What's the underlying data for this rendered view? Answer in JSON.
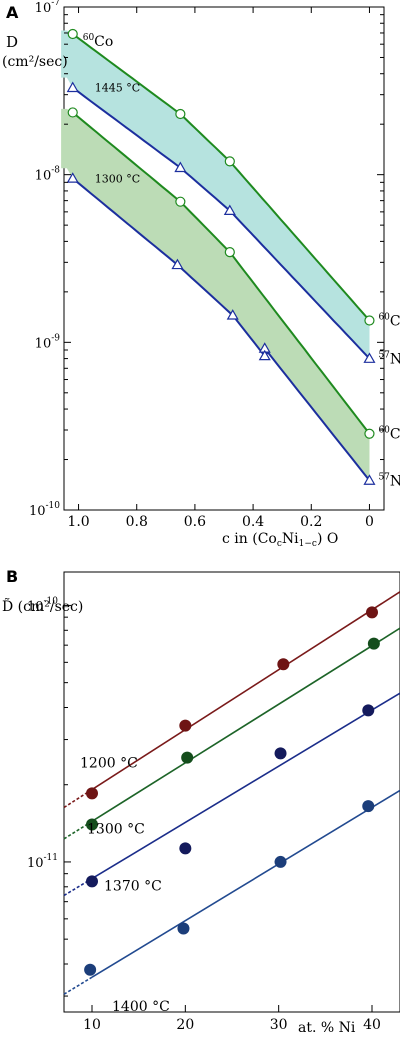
{
  "chart_data": [
    {
      "panel": "A",
      "type": "line",
      "scale_y": "log",
      "x_reversed": true,
      "ylabel_line1": "D",
      "ylabel_line2": "(cm²/sec)",
      "xlabel": "c in (CoₓNi₁₋ₓ) O",
      "xlabel_parts": [
        "c in (Co",
        "c",
        "Ni",
        "1−c",
        ") O"
      ],
      "xlim": [
        1.05,
        -0.05
      ],
      "ylim": [
        1e-10,
        1e-07
      ],
      "x_ticks": [
        1.0,
        0.8,
        0.6,
        0.4,
        0.2,
        0
      ],
      "x_tick_labels": [
        "1.0",
        "0.8",
        "0.6",
        "0.4",
        "0.2",
        "0"
      ],
      "y_ticks": [
        {
          "value": 1e-07,
          "base": "10",
          "exp": "-7"
        },
        {
          "value": 1e-08,
          "base": "10",
          "exp": "-8"
        },
        {
          "value": 1e-09,
          "base": "10",
          "exp": "-9"
        },
        {
          "value": 1e-10,
          "base": "10",
          "exp": "-10"
        }
      ],
      "bands": [
        {
          "color": "#b6e3df",
          "between": [
            "Co 1445",
            "Ni 1445"
          ]
        },
        {
          "color": "#bcdcb6",
          "between": [
            "Co 1300",
            "Ni 1300"
          ]
        }
      ],
      "series": [
        {
          "id": "Co 1445",
          "temperature": "1445 °C",
          "isotope_mass": "60",
          "isotope": "Co",
          "marker": "circle",
          "color": "#1f8a1f",
          "x": [
            1.02,
            0.65,
            0.48,
            0.0
          ],
          "y": [
            6.9e-08,
            2.3e-08,
            1.2e-08,
            1.35e-09
          ]
        },
        {
          "id": "Ni 1445",
          "temperature": "1445 °C",
          "isotope_mass": "57",
          "isotope": "Ni",
          "marker": "triangle",
          "color": "#1c2f9e",
          "x": [
            1.02,
            0.65,
            0.48,
            0.0
          ],
          "y": [
            3.3e-08,
            1.1e-08,
            6.1e-09,
            8e-10
          ]
        },
        {
          "id": "Co 1300",
          "temperature": "1300 °C",
          "isotope_mass": "60",
          "isotope": "Co",
          "marker": "circle",
          "color": "#1f8a1f",
          "x": [
            1.02,
            0.65,
            0.48,
            0.0
          ],
          "y": [
            2.35e-08,
            6.9e-09,
            3.45e-09,
            2.85e-10
          ]
        },
        {
          "id": "Ni 1300",
          "temperature": "1300 °C",
          "isotope_mass": "57",
          "isotope": "Ni",
          "marker": "triangle",
          "color": "#1c2f9e",
          "x": [
            1.02,
            0.66,
            0.47,
            0.36,
            0.36,
            0.0
          ],
          "y": [
            9.5e-09,
            2.9e-09,
            1.45e-09,
            9.2e-10,
            8.3e-10,
            1.5e-10
          ]
        }
      ],
      "annotations": [
        {
          "text": "1445 °C"
        },
        {
          "text": "1300 °C"
        }
      ]
    },
    {
      "panel": "B",
      "type": "scatter",
      "scale_y": "log",
      "ylabel": "D̃ (cm²/sec)",
      "xlabel": "at. % Ni",
      "xlim": [
        7,
        43
      ],
      "ylim": [
        2.6e-12,
        1.35e-10
      ],
      "x_ticks": [
        10,
        20,
        30,
        40
      ],
      "x_tick_labels": [
        "10",
        "20",
        "30",
        "40"
      ],
      "y_ticks": [
        {
          "value": 1e-10,
          "base": "10",
          "exp": "-10"
        },
        {
          "value": 1e-11,
          "base": "10",
          "exp": "-11"
        }
      ],
      "series": [
        {
          "label": "1200 °C",
          "color": "#6e1414",
          "fit_color": "#7a1a1a",
          "x": [
            10,
            20,
            30.5,
            40
          ],
          "y": [
            1.85e-11,
            3.4e-11,
            5.9e-11,
            9.4e-11
          ],
          "fit": {
            "x": [
              7,
              43
            ],
            "y": [
              1.63e-11,
              1.13e-10
            ]
          }
        },
        {
          "label": "1300 °C",
          "color": "#144d1c",
          "fit_color": "#1d6428",
          "x": [
            10,
            20.2,
            40.2
          ],
          "y": [
            1.4e-11,
            2.55e-11,
            7.1e-11
          ],
          "fit": {
            "x": [
              7,
              43
            ],
            "y": [
              1.23e-11,
              8.15e-11
            ]
          }
        },
        {
          "label": "1370 °C",
          "color": "#141a5c",
          "fit_color": "#1b2d8a",
          "x": [
            10,
            20,
            30.2,
            39.6
          ],
          "y": [
            8.4e-12,
            1.13e-11,
            2.65e-11,
            3.9e-11
          ],
          "fit": {
            "x": [
              7,
              43
            ],
            "y": [
              7.4e-12,
              4.55e-11
            ]
          }
        },
        {
          "label": "1400 °C",
          "color": "#1c3e7a",
          "fit_color": "#224a90",
          "x": [
            9.8,
            19.8,
            30.2,
            39.6
          ],
          "y": [
            3.8e-12,
            5.5e-12,
            1e-11,
            1.65e-11
          ],
          "fit": {
            "x": [
              7,
              43
            ],
            "y": [
              3.05e-12,
              1.9e-11
            ]
          }
        }
      ]
    }
  ],
  "panels": {
    "a_label": "A",
    "b_label": "B"
  }
}
